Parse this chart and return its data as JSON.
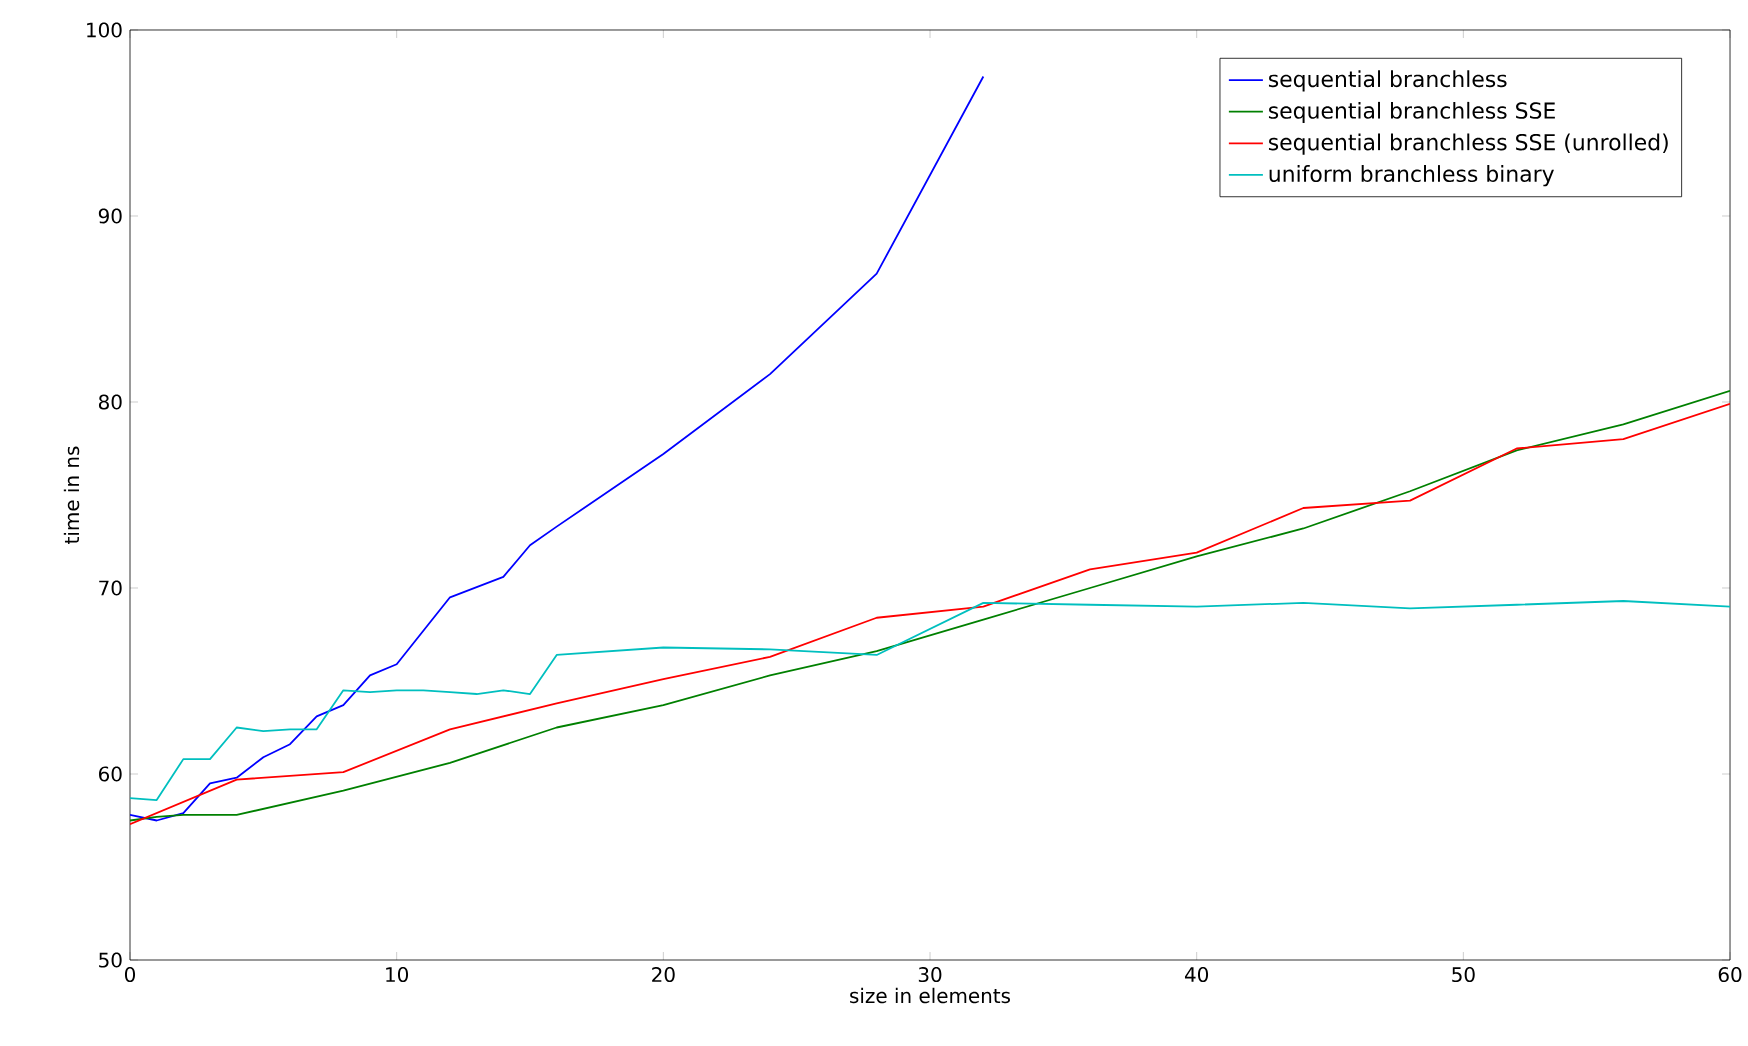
{
  "chart_data": {
    "type": "line",
    "xlabel": "size in elements",
    "ylabel": "time in ns",
    "xlim": [
      0,
      60
    ],
    "ylim": [
      50,
      100
    ],
    "xticks": [
      0,
      10,
      20,
      30,
      40,
      50,
      60
    ],
    "yticks": [
      50,
      60,
      70,
      80,
      90,
      100
    ],
    "grid": false,
    "legend": "top right",
    "marker": "none",
    "line_style": "solid",
    "series": [
      {
        "name": "sequential branchless",
        "color": "#0000ff",
        "x": [
          0,
          1,
          2,
          3,
          4,
          5,
          6,
          7,
          8,
          9,
          10,
          12,
          14,
          15,
          16,
          20,
          24,
          28,
          32
        ],
        "values": [
          57.8,
          57.5,
          57.9,
          59.5,
          59.8,
          60.9,
          61.6,
          63.1,
          63.7,
          65.3,
          65.9,
          69.5,
          70.6,
          72.3,
          73.3,
          77.2,
          81.5,
          86.9,
          97.5
        ]
      },
      {
        "name": "sequential branchless SSE",
        "color": "#008000",
        "x": [
          0,
          1,
          2,
          4,
          8,
          12,
          16,
          20,
          24,
          28,
          32,
          36,
          40,
          44,
          48,
          52,
          56,
          60
        ],
        "values": [
          57.5,
          57.7,
          57.8,
          57.8,
          59.1,
          60.6,
          62.5,
          63.7,
          65.3,
          66.6,
          68.3,
          70.0,
          71.7,
          73.2,
          75.2,
          77.4,
          78.8,
          80.6
        ]
      },
      {
        "name": "sequential branchless SSE (unrolled)",
        "color": "#ff0000",
        "x": [
          0,
          4,
          8,
          12,
          16,
          20,
          24,
          28,
          32,
          36,
          40,
          44,
          48,
          52,
          56,
          60
        ],
        "values": [
          57.3,
          59.7,
          60.1,
          62.4,
          63.8,
          65.1,
          66.3,
          68.4,
          69.0,
          71.0,
          71.9,
          74.3,
          74.7,
          77.5,
          78.0,
          79.9
        ]
      },
      {
        "name": "uniform branchless binary",
        "color": "#00bfbf",
        "x": [
          0,
          1,
          2,
          3,
          4,
          5,
          6,
          7,
          8,
          9,
          10,
          11,
          12,
          13,
          14,
          15,
          16,
          20,
          24,
          28,
          32,
          36,
          40,
          44,
          48,
          52,
          56,
          60
        ],
        "values": [
          58.7,
          58.6,
          60.8,
          60.8,
          62.5,
          62.3,
          62.4,
          62.4,
          64.5,
          64.4,
          64.5,
          64.5,
          64.4,
          64.3,
          64.5,
          64.3,
          66.4,
          66.8,
          66.7,
          66.4,
          69.2,
          69.1,
          69.0,
          69.2,
          68.9,
          69.1,
          69.3,
          69.0
        ]
      }
    ]
  }
}
